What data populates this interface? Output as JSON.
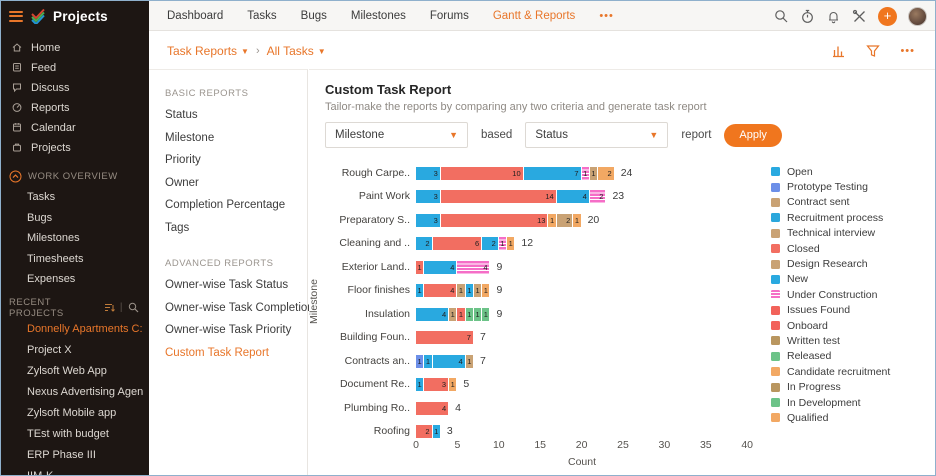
{
  "app": {
    "accent": "#e8762a",
    "button_orange": "#f0761e",
    "sidebar_bg": "#1d1613"
  },
  "sidebar": {
    "logo_text": "Projects",
    "nav": [
      {
        "label": "Home",
        "icon": "home-icon"
      },
      {
        "label": "Feed",
        "icon": "feed-icon"
      },
      {
        "label": "Discuss",
        "icon": "discuss-icon"
      },
      {
        "label": "Reports",
        "icon": "reports-icon"
      },
      {
        "label": "Calendar",
        "icon": "calendar-icon"
      },
      {
        "label": "Projects",
        "icon": "projects-icon"
      }
    ],
    "work_overview": {
      "header": "WORK OVERVIEW",
      "items": [
        "Tasks",
        "Bugs",
        "Milestones",
        "Timesheets",
        "Expenses"
      ]
    },
    "recent_projects": {
      "header": "RECENT PROJECTS",
      "items": [
        {
          "label": "Donnelly Apartments C:",
          "active": true
        },
        {
          "label": "Project X",
          "active": false
        },
        {
          "label": "Zylsoft Web App",
          "active": false
        },
        {
          "label": "Nexus Advertising Agen",
          "active": false
        },
        {
          "label": "Zylsoft Mobile app",
          "active": false
        },
        {
          "label": "TEst with budget",
          "active": false
        },
        {
          "label": "ERP Phase III",
          "active": false
        },
        {
          "label": "IIM-K",
          "active": false
        }
      ]
    }
  },
  "topnav": {
    "items": [
      {
        "label": "Dashboard",
        "active": false
      },
      {
        "label": "Tasks",
        "active": false
      },
      {
        "label": "Bugs",
        "active": false
      },
      {
        "label": "Milestones",
        "active": false
      },
      {
        "label": "Forums",
        "active": false
      },
      {
        "label": "Gantt & Reports",
        "active": true
      }
    ],
    "more": "•••"
  },
  "breadcrumb": {
    "level1": "Task Reports",
    "level2": "All Tasks",
    "more": "•••"
  },
  "reports_panel": {
    "basic": {
      "header": "BASIC REPORTS",
      "items": [
        "Status",
        "Milestone",
        "Priority",
        "Owner",
        "Completion Percentage",
        "Tags"
      ]
    },
    "advanced": {
      "header": "ADVANCED REPORTS",
      "items": [
        {
          "label": "Owner-wise Task Status",
          "active": false
        },
        {
          "label": "Owner-wise Task Completion",
          "active": false
        },
        {
          "label": "Owner-wise Task Priority",
          "active": false
        },
        {
          "label": "Custom Task Report",
          "active": true
        }
      ]
    }
  },
  "main": {
    "title": "Custom Task Report",
    "subtitle": "Tailor-make the reports by comparing any two criteria and generate task report",
    "criteria1": "Milestone",
    "conjunction": "based",
    "criteria2": "Status",
    "report_word": "report",
    "apply_label": "Apply"
  },
  "chart_data": {
    "type": "bar",
    "orientation": "horizontal-stacked",
    "title": "",
    "xlabel": "Count",
    "ylabel": "Milestone",
    "xlim": [
      0,
      40
    ],
    "xticks": [
      0,
      5,
      10,
      15,
      20,
      25,
      30,
      35,
      40
    ],
    "grid": false,
    "legend_position": "right",
    "palette": {
      "blue": "#29a9e0",
      "periwinkle": "#6c8fe8",
      "tan": "#c9a274",
      "red": "#f26e61",
      "pink": "#f56ec7",
      "orange": "#f2a863",
      "green": "#6cc388",
      "brown": "#b9965f"
    },
    "rows": [
      {
        "label": "Rough Carpe..",
        "total": 24,
        "segments": [
          [
            "blue",
            3
          ],
          [
            "red",
            10
          ],
          [
            "blue",
            7
          ],
          [
            "pink",
            1
          ],
          [
            "tan",
            1
          ],
          [
            "orange",
            2
          ]
        ]
      },
      {
        "label": "Paint Work",
        "total": 23,
        "segments": [
          [
            "blue",
            3
          ],
          [
            "red",
            14
          ],
          [
            "blue",
            4
          ],
          [
            "pink",
            2
          ]
        ]
      },
      {
        "label": "Preparatory S..",
        "total": 20,
        "segments": [
          [
            "blue",
            3
          ],
          [
            "red",
            13
          ],
          [
            "orange",
            1
          ],
          [
            "tan",
            2
          ],
          [
            "orange",
            1
          ]
        ]
      },
      {
        "label": "Cleaning and ..",
        "total": 12,
        "segments": [
          [
            "blue",
            2
          ],
          [
            "red",
            6
          ],
          [
            "blue",
            2
          ],
          [
            "pink",
            1
          ],
          [
            "orange",
            1
          ]
        ]
      },
      {
        "label": "Exterior Land..",
        "total": 9,
        "segments": [
          [
            "red",
            1
          ],
          [
            "blue",
            4
          ],
          [
            "pink",
            4
          ]
        ]
      },
      {
        "label": "Floor finishes",
        "total": 9,
        "segments": [
          [
            "blue",
            1
          ],
          [
            "red",
            4
          ],
          [
            "tan",
            1
          ],
          [
            "blue",
            1
          ],
          [
            "tan",
            1
          ],
          [
            "orange",
            1
          ]
        ]
      },
      {
        "label": "Insulation",
        "total": 9,
        "segments": [
          [
            "blue",
            4
          ],
          [
            "tan",
            1
          ],
          [
            "red",
            1
          ],
          [
            "green",
            1
          ],
          [
            "green",
            1
          ],
          [
            "green",
            1
          ]
        ]
      },
      {
        "label": "Building Foun..",
        "total": 7,
        "segments": [
          [
            "red",
            7
          ]
        ]
      },
      {
        "label": "Contracts an..",
        "total": 7,
        "segments": [
          [
            "periwinkle",
            1
          ],
          [
            "blue",
            1
          ],
          [
            "blue",
            4
          ],
          [
            "tan",
            1
          ]
        ]
      },
      {
        "label": "Document Re..",
        "total": 5,
        "segments": [
          [
            "blue",
            1
          ],
          [
            "red",
            3
          ],
          [
            "orange",
            1
          ]
        ]
      },
      {
        "label": "Plumbing Ro..",
        "total": 4,
        "segments": [
          [
            "red",
            4
          ]
        ]
      },
      {
        "label": "Roofing",
        "total": 3,
        "segments": [
          [
            "red",
            2
          ],
          [
            "blue",
            1
          ]
        ]
      }
    ],
    "legend": [
      {
        "label": "Open",
        "color": "#29a9e0",
        "striped": false
      },
      {
        "label": "Prototype Testing",
        "color": "#6c8fe8",
        "striped": false
      },
      {
        "label": "Contract sent",
        "color": "#c9a274",
        "striped": false
      },
      {
        "label": "Recruitment process",
        "color": "#2ba7dc",
        "striped": false
      },
      {
        "label": "Technical interview",
        "color": "#c9a274",
        "striped": false
      },
      {
        "label": "Closed",
        "color": "#f26e61",
        "striped": false
      },
      {
        "label": "Design Research",
        "color": "#c9a274",
        "striped": false
      },
      {
        "label": "New",
        "color": "#29a9e0",
        "striped": false
      },
      {
        "label": "Under Construction",
        "color": "#f56ec7",
        "striped": true
      },
      {
        "label": "Issues Found",
        "color": "#f2625a",
        "striped": false
      },
      {
        "label": "Onboard",
        "color": "#f2625a",
        "striped": false
      },
      {
        "label": "Written test",
        "color": "#b9965f",
        "striped": false
      },
      {
        "label": "Released",
        "color": "#6cc388",
        "striped": false
      },
      {
        "label": "Candidate recruitment",
        "color": "#f2a863",
        "striped": false
      },
      {
        "label": "In Progress",
        "color": "#b9965f",
        "striped": false
      },
      {
        "label": "In Development",
        "color": "#6cc388",
        "striped": false
      },
      {
        "label": "Qualified",
        "color": "#f2a863",
        "striped": false
      }
    ]
  }
}
